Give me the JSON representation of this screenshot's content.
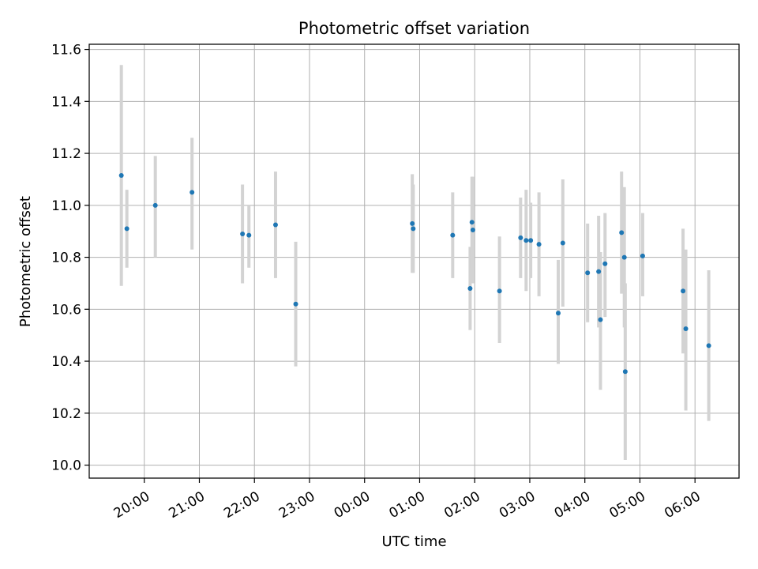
{
  "chart_data": {
    "type": "scatter",
    "title": "Photometric offset variation",
    "xlabel": "UTC time",
    "ylabel": "Photometric offset",
    "x_is_time": true,
    "x_origin_label": "20:00",
    "xlim_hours": [
      -1.0,
      10.8
    ],
    "ylim": [
      9.95,
      11.62
    ],
    "x_ticks": [
      {
        "h": 0,
        "label": "20:00"
      },
      {
        "h": 1,
        "label": "21:00"
      },
      {
        "h": 2,
        "label": "22:00"
      },
      {
        "h": 3,
        "label": "23:00"
      },
      {
        "h": 4,
        "label": "00:00"
      },
      {
        "h": 5,
        "label": "01:00"
      },
      {
        "h": 6,
        "label": "02:00"
      },
      {
        "h": 7,
        "label": "03:00"
      },
      {
        "h": 8,
        "label": "04:00"
      },
      {
        "h": 9,
        "label": "05:00"
      },
      {
        "h": 10,
        "label": "06:00"
      }
    ],
    "y_ticks": [
      {
        "v": 10.0,
        "label": "10.0"
      },
      {
        "v": 10.2,
        "label": "10.2"
      },
      {
        "v": 10.4,
        "label": "10.4"
      },
      {
        "v": 10.6,
        "label": "10.6"
      },
      {
        "v": 10.8,
        "label": "10.8"
      },
      {
        "v": 11.0,
        "label": "11.0"
      },
      {
        "v": 11.2,
        "label": "11.2"
      },
      {
        "v": 11.4,
        "label": "11.4"
      },
      {
        "v": 11.6,
        "label": "11.6"
      }
    ],
    "grid": true,
    "colors": {
      "point": "#1f77b4",
      "errorbar": "#d3d3d3",
      "grid": "#b0b0b0"
    },
    "points": [
      {
        "t": "19:35",
        "y": 11.115,
        "lo": 10.69,
        "hi": 11.54
      },
      {
        "t": "19:41",
        "y": 10.91,
        "lo": 10.76,
        "hi": 11.06
      },
      {
        "t": "20:12",
        "y": 11.0,
        "lo": 10.8,
        "hi": 11.19
      },
      {
        "t": "20:52",
        "y": 11.05,
        "lo": 10.83,
        "hi": 11.26
      },
      {
        "t": "21:47",
        "y": 10.89,
        "lo": 10.7,
        "hi": 11.08
      },
      {
        "t": "21:54",
        "y": 10.885,
        "lo": 10.76,
        "hi": 11.0
      },
      {
        "t": "22:23",
        "y": 10.925,
        "lo": 10.72,
        "hi": 11.13
      },
      {
        "t": "22:45",
        "y": 10.62,
        "lo": 10.38,
        "hi": 10.86
      },
      {
        "t": "00:52",
        "y": 10.93,
        "lo": 10.74,
        "hi": 11.12
      },
      {
        "t": "00:53",
        "y": 10.91,
        "lo": 10.74,
        "hi": 11.08
      },
      {
        "t": "01:36",
        "y": 10.885,
        "lo": 10.72,
        "hi": 11.05
      },
      {
        "t": "01:55",
        "y": 10.68,
        "lo": 10.52,
        "hi": 10.84
      },
      {
        "t": "01:57",
        "y": 10.935,
        "lo": 10.76,
        "hi": 11.11
      },
      {
        "t": "01:58",
        "y": 10.905,
        "lo": 10.7,
        "hi": 11.11
      },
      {
        "t": "02:27",
        "y": 10.67,
        "lo": 10.47,
        "hi": 10.88
      },
      {
        "t": "02:50",
        "y": 10.875,
        "lo": 10.72,
        "hi": 11.03
      },
      {
        "t": "02:56",
        "y": 10.865,
        "lo": 10.67,
        "hi": 11.06
      },
      {
        "t": "03:01",
        "y": 10.865,
        "lo": 10.72,
        "hi": 11.01
      },
      {
        "t": "03:10",
        "y": 10.85,
        "lo": 10.65,
        "hi": 11.05
      },
      {
        "t": "03:31",
        "y": 10.585,
        "lo": 10.39,
        "hi": 10.79
      },
      {
        "t": "03:36",
        "y": 10.855,
        "lo": 10.61,
        "hi": 11.1
      },
      {
        "t": "04:03",
        "y": 10.74,
        "lo": 10.55,
        "hi": 10.93
      },
      {
        "t": "04:15",
        "y": 10.745,
        "lo": 10.53,
        "hi": 10.96
      },
      {
        "t": "04:17",
        "y": 10.56,
        "lo": 10.29,
        "hi": 10.82
      },
      {
        "t": "04:22",
        "y": 10.775,
        "lo": 10.57,
        "hi": 10.97
      },
      {
        "t": "04:40",
        "y": 10.895,
        "lo": 10.66,
        "hi": 11.13
      },
      {
        "t": "04:43",
        "y": 10.8,
        "lo": 10.53,
        "hi": 11.07
      },
      {
        "t": "04:44",
        "y": 10.36,
        "lo": 10.02,
        "hi": 10.7
      },
      {
        "t": "05:03",
        "y": 10.805,
        "lo": 10.65,
        "hi": 10.97
      },
      {
        "t": "05:47",
        "y": 10.67,
        "lo": 10.43,
        "hi": 10.91
      },
      {
        "t": "05:50",
        "y": 10.525,
        "lo": 10.21,
        "hi": 10.83
      },
      {
        "t": "06:15",
        "y": 10.46,
        "lo": 10.17,
        "hi": 10.75
      }
    ]
  }
}
